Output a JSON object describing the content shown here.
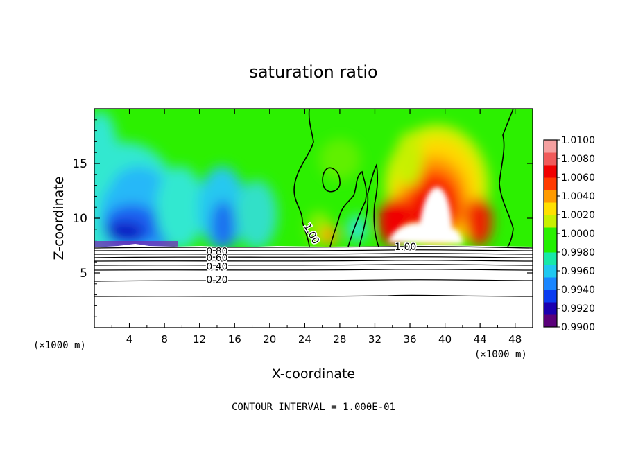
{
  "chart_data": {
    "type": "heatmap",
    "title": "saturation ratio",
    "xlabel": "X-coordinate",
    "ylabel": "Z-coordinate",
    "x_unit_left": "(×1000 m)",
    "x_unit_right": "(×1000 m)",
    "footer": "CONTOUR INTERVAL = 1.000E-01",
    "xlim": [
      0,
      50
    ],
    "ylim": [
      0,
      20
    ],
    "x_ticks": [
      4,
      8,
      12,
      16,
      20,
      24,
      28,
      32,
      36,
      40,
      44,
      48
    ],
    "y_ticks": [
      5,
      10,
      15
    ],
    "colorbar": {
      "min": 0.99,
      "max": 1.01,
      "tick_labels": [
        "1.0100",
        "1.0080",
        "1.0060",
        "1.0040",
        "1.0020",
        "1.0000",
        "0.9980",
        "0.9960",
        "0.9940",
        "0.9920",
        "0.9900"
      ],
      "colors": [
        "#5a007a",
        "#1a00b0",
        "#0a3cf0",
        "#1a86ff",
        "#20c8f0",
        "#18e8a8",
        "#20f000",
        "#2cf000",
        "#c8f000",
        "#ffe000",
        "#ff9a00",
        "#ff3a00",
        "#f00000",
        "#f05a5a",
        "#f5a0a0"
      ]
    },
    "filled_region_top_z": 7.3,
    "contour_labels": [
      {
        "text": "0.80",
        "x": 14,
        "z": 7.0
      },
      {
        "text": "0.60",
        "x": 14,
        "z": 6.4
      },
      {
        "text": "0.40",
        "x": 14,
        "z": 5.6
      },
      {
        "text": "0.20",
        "x": 14,
        "z": 4.4
      },
      {
        "text": "1.00",
        "x": 24.8,
        "z": 8.6
      },
      {
        "text": "1.00",
        "x": 35.5,
        "z": 7.4
      }
    ]
  }
}
